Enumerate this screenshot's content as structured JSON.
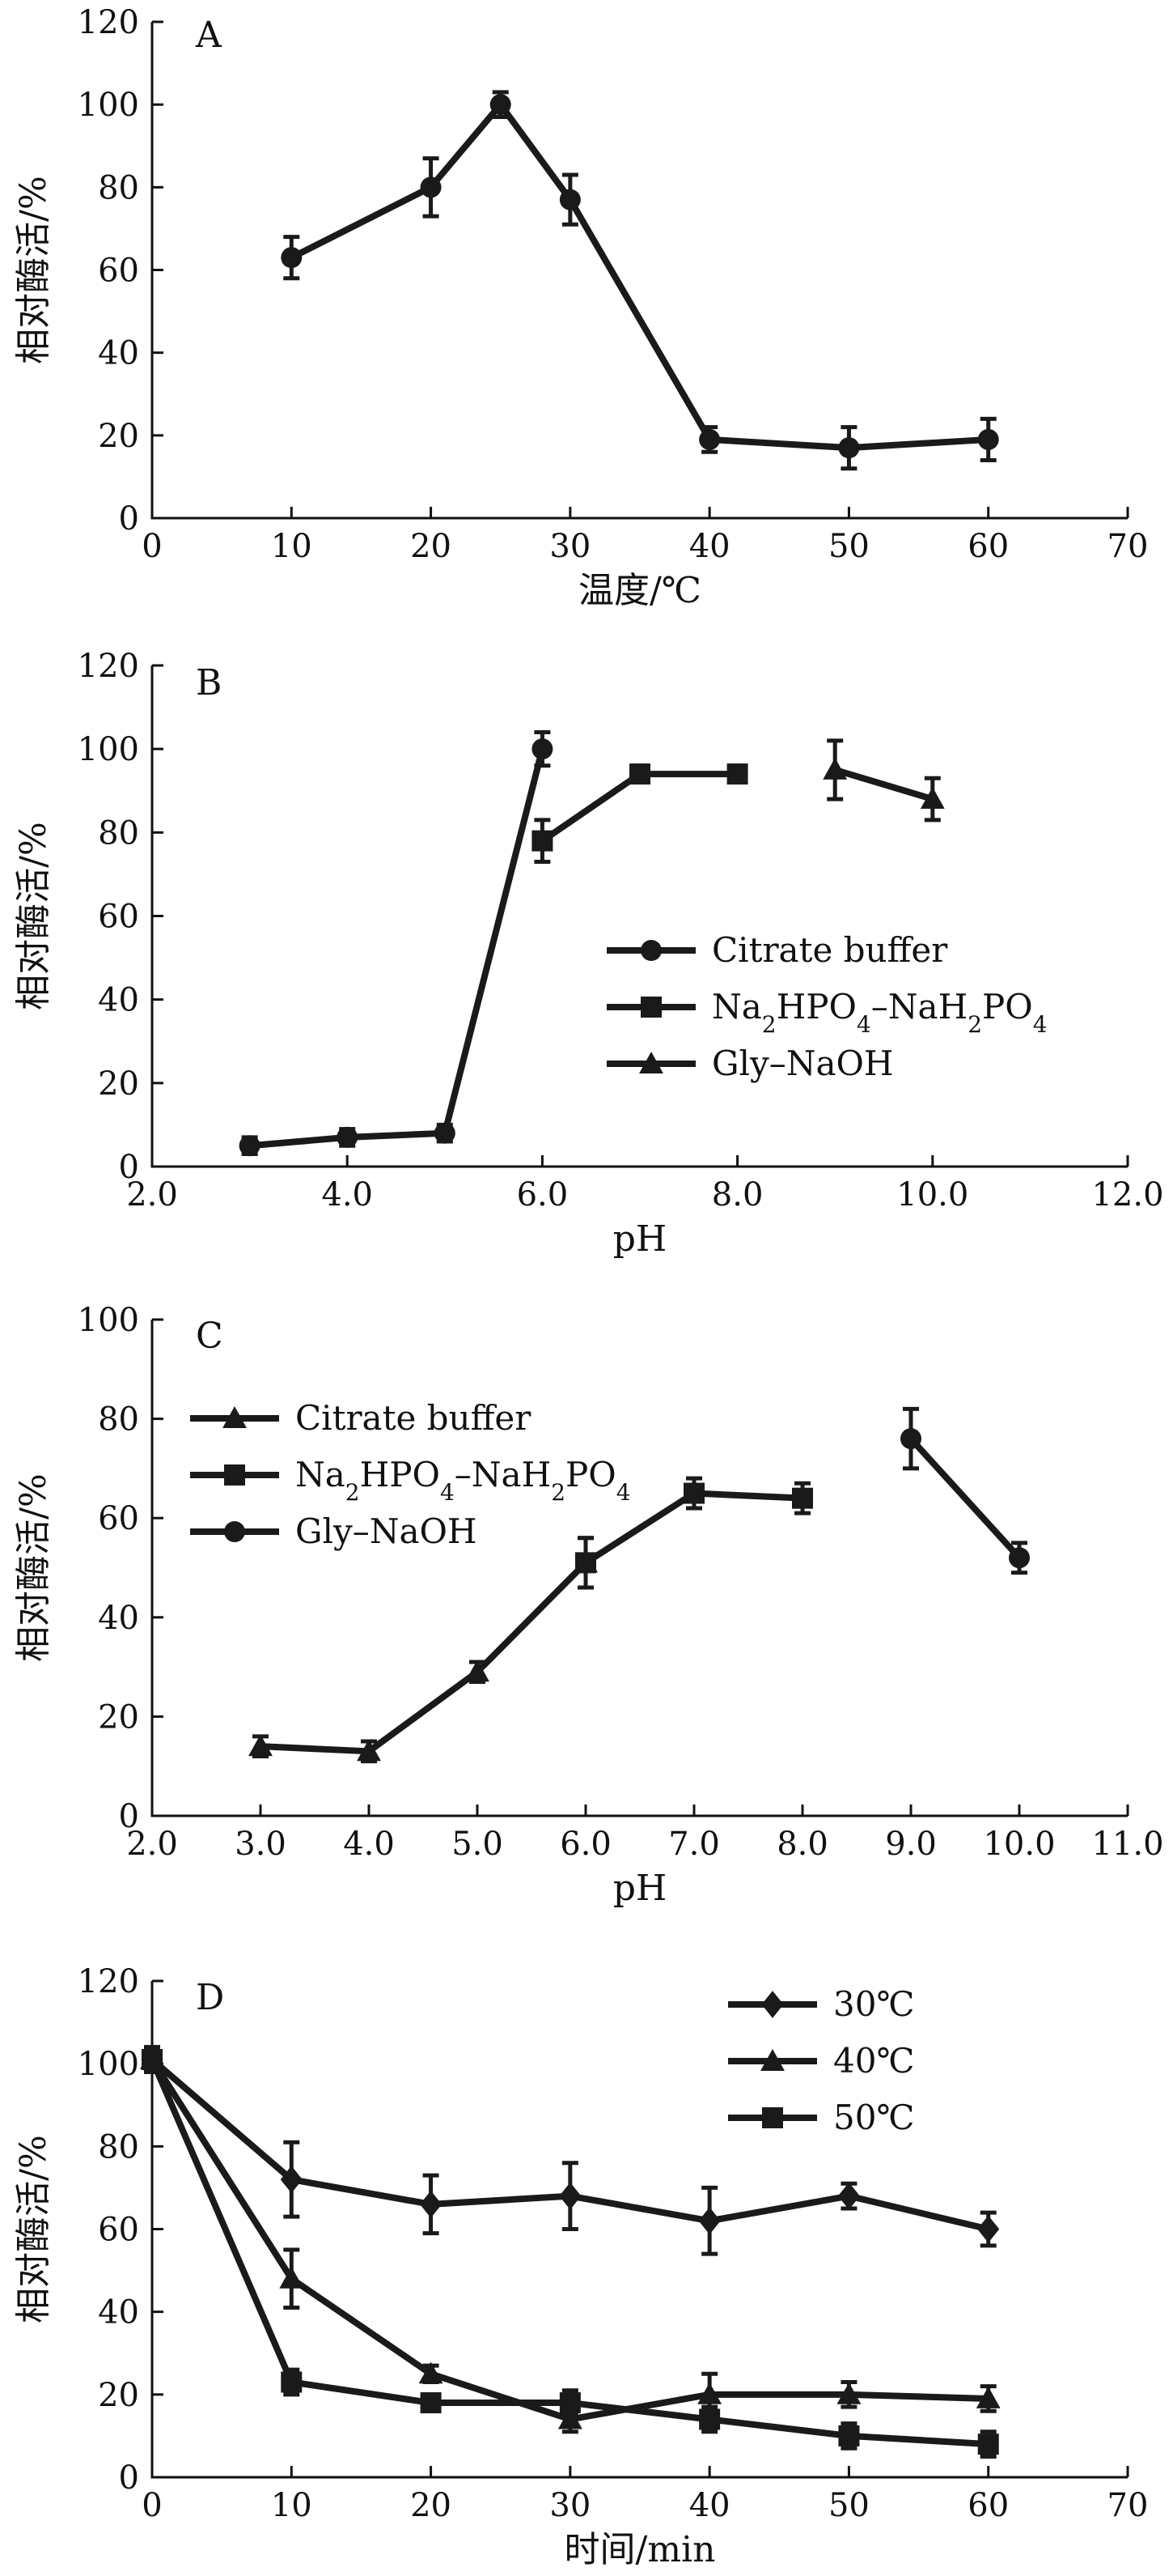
{
  "chart_data": [
    {
      "panel": "A",
      "type": "line",
      "xlabel": "温度/℃",
      "ylabel": "相对酶活/%",
      "xlim": [
        0,
        70
      ],
      "ylim": [
        0,
        120
      ],
      "xticks": [
        0,
        10,
        20,
        30,
        40,
        50,
        60,
        70
      ],
      "xtick_labels": [
        "0",
        "10",
        "20",
        "30",
        "40",
        "50",
        "60",
        "70"
      ],
      "yticks": [
        0,
        20,
        40,
        60,
        80,
        100,
        120
      ],
      "ytick_labels": [
        "0",
        "20",
        "40",
        "60",
        "80",
        "100",
        "120"
      ],
      "legend": null,
      "series": [
        {
          "marker": "circle",
          "x": [
            10,
            20,
            25,
            30,
            40,
            50,
            60
          ],
          "y": [
            63,
            80,
            100,
            77,
            19,
            17,
            19
          ],
          "err": [
            5,
            7,
            3,
            6,
            3,
            5,
            5
          ]
        }
      ]
    },
    {
      "panel": "B",
      "type": "line",
      "xlabel": "pH",
      "ylabel": "相对酶活/%",
      "xlim": [
        2,
        12
      ],
      "ylim": [
        0,
        120
      ],
      "xticks": [
        2,
        4,
        6,
        8,
        10,
        12
      ],
      "xtick_labels": [
        "2.0",
        "4.0",
        "6.0",
        "8.0",
        "10.0",
        "12.0"
      ],
      "yticks": [
        0,
        20,
        40,
        60,
        80,
        100,
        120
      ],
      "ytick_labels": [
        "0",
        "20",
        "40",
        "60",
        "80",
        "100",
        "120"
      ],
      "legend": "center-right",
      "series": [
        {
          "name": "Citrate buffer",
          "name_parts": [
            {
              "t": "Citrate buffer"
            }
          ],
          "marker": "circle",
          "x": [
            3,
            4,
            5,
            6
          ],
          "y": [
            5,
            7,
            8,
            100
          ],
          "err": [
            2,
            2,
            2,
            4
          ]
        },
        {
          "name": "Na2HPO4–NaH2PO4",
          "name_parts": [
            {
              "t": "Na"
            },
            {
              "t": "2",
              "sub": true
            },
            {
              "t": "HPO"
            },
            {
              "t": "4",
              "sub": true
            },
            {
              "t": "–NaH"
            },
            {
              "t": "2",
              "sub": true
            },
            {
              "t": "PO"
            },
            {
              "t": "4",
              "sub": true
            }
          ],
          "marker": "square",
          "x": [
            6,
            7,
            8
          ],
          "y": [
            78,
            94,
            94
          ],
          "err": [
            5,
            2,
            2
          ]
        },
        {
          "name": "Gly–NaOH",
          "name_parts": [
            {
              "t": "Gly–NaOH"
            }
          ],
          "marker": "triangle",
          "x": [
            9,
            10
          ],
          "y": [
            95,
            88
          ],
          "err": [
            7,
            5
          ]
        }
      ]
    },
    {
      "panel": "C",
      "type": "line",
      "xlabel": "pH",
      "ylabel": "相对酶活/%",
      "xlim": [
        2,
        11
      ],
      "ylim": [
        0,
        100
      ],
      "xticks": [
        2,
        3,
        4,
        5,
        6,
        7,
        8,
        9,
        10,
        11
      ],
      "xtick_labels": [
        "2.0",
        "3.0",
        "4.0",
        "5.0",
        "6.0",
        "7.0",
        "8.0",
        "9.0",
        "10.0",
        "11.0"
      ],
      "yticks": [
        0,
        20,
        40,
        60,
        80,
        100
      ],
      "ytick_labels": [
        "0",
        "20",
        "40",
        "60",
        "80",
        "100"
      ],
      "legend": "top-left",
      "series": [
        {
          "name": "Citrate buffer",
          "name_parts": [
            {
              "t": "Citrate buffer"
            }
          ],
          "marker": "triangle",
          "x": [
            3,
            4,
            5,
            6
          ],
          "y": [
            14,
            13,
            29,
            51
          ],
          "err": [
            2,
            2,
            2,
            5
          ]
        },
        {
          "name": "Na2HPO4–NaH2PO4",
          "name_parts": [
            {
              "t": "Na"
            },
            {
              "t": "2",
              "sub": true
            },
            {
              "t": "HPO"
            },
            {
              "t": "4",
              "sub": true
            },
            {
              "t": "–NaH"
            },
            {
              "t": "2",
              "sub": true
            },
            {
              "t": "PO"
            },
            {
              "t": "4",
              "sub": true
            }
          ],
          "marker": "square",
          "x": [
            6,
            7,
            8
          ],
          "y": [
            51,
            65,
            64
          ],
          "err": [
            5,
            3,
            3
          ]
        },
        {
          "name": "Gly–NaOH",
          "name_parts": [
            {
              "t": "Gly–NaOH"
            }
          ],
          "marker": "circle",
          "x": [
            9,
            10
          ],
          "y": [
            76,
            52
          ],
          "err": [
            6,
            3
          ]
        }
      ]
    },
    {
      "panel": "D",
      "type": "line",
      "xlabel": "时间/min",
      "ylabel": "相对酶活/%",
      "xlim": [
        0,
        70
      ],
      "ylim": [
        0,
        120
      ],
      "xticks": [
        0,
        10,
        20,
        30,
        40,
        50,
        60,
        70
      ],
      "xtick_labels": [
        "0",
        "10",
        "20",
        "30",
        "40",
        "50",
        "60",
        "70"
      ],
      "yticks": [
        0,
        20,
        40,
        60,
        80,
        100,
        120
      ],
      "ytick_labels": [
        "0",
        "20",
        "40",
        "60",
        "80",
        "100",
        "120"
      ],
      "legend": "top-right",
      "series": [
        {
          "name": "30℃",
          "name_parts": [
            {
              "t": "30℃"
            }
          ],
          "marker": "diamond",
          "x": [
            0,
            10,
            20,
            30,
            40,
            50,
            60
          ],
          "y": [
            101,
            72,
            66,
            68,
            62,
            68,
            60
          ],
          "err": [
            3,
            9,
            7,
            8,
            8,
            3,
            4
          ]
        },
        {
          "name": "40℃",
          "name_parts": [
            {
              "t": "40℃"
            }
          ],
          "marker": "triangle",
          "x": [
            0,
            10,
            20,
            30,
            40,
            50,
            60
          ],
          "y": [
            101,
            48,
            25,
            14,
            20,
            20,
            19
          ],
          "err": [
            3,
            7,
            2,
            3,
            5,
            3,
            3
          ]
        },
        {
          "name": "50℃",
          "name_parts": [
            {
              "t": "50℃"
            }
          ],
          "marker": "square",
          "x": [
            0,
            10,
            20,
            30,
            40,
            50,
            60
          ],
          "y": [
            101,
            23,
            18,
            18,
            14,
            10,
            8
          ],
          "err": [
            3,
            3,
            2,
            3,
            3,
            3,
            3
          ]
        }
      ]
    }
  ]
}
